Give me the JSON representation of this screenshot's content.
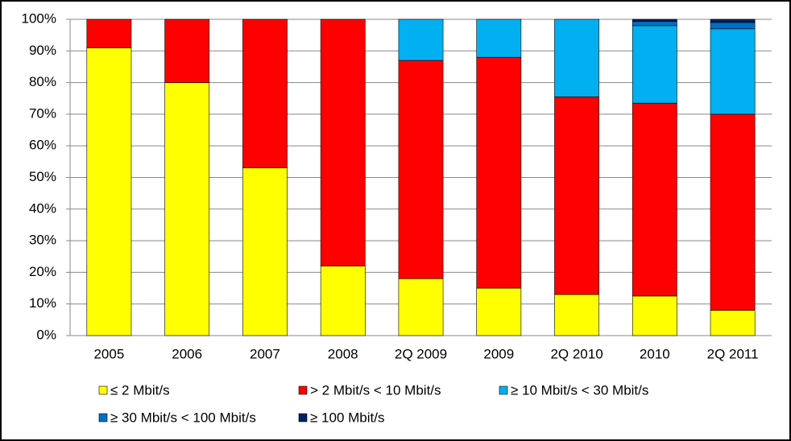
{
  "chart_data": {
    "type": "stacked_bar",
    "categories": [
      "2005",
      "2006",
      "2007",
      "2008",
      "2Q 2009",
      "2009",
      "2Q 2010",
      "2010",
      "2Q 2011"
    ],
    "series": [
      {
        "name": "≤  2 Mbit/s",
        "color": "#ffff00",
        "values": [
          91,
          80,
          53,
          22,
          18,
          15,
          13,
          12.5,
          8
        ]
      },
      {
        "name": "> 2 Mbit/s < 10 Mbit/s",
        "color": "#ff0000",
        "values": [
          9,
          20,
          47,
          78,
          69,
          73,
          62.5,
          61,
          62
        ]
      },
      {
        "name": "≥ 10 Mbit/s < 30 Mbit/s",
        "color": "#00b0f0",
        "values": [
          0,
          0,
          0,
          0,
          13,
          12,
          24.5,
          24.5,
          27
        ]
      },
      {
        "name": "≥ 30 Mbit/s < 100 Mbit/s",
        "color": "#0070c0",
        "values": [
          0,
          0,
          0,
          0,
          0,
          0,
          0,
          1.3,
          2
        ]
      },
      {
        "name": "≥ 100 Mbit/s",
        "color": "#002060",
        "values": [
          0,
          0,
          0,
          0,
          0,
          0,
          0,
          0.7,
          1
        ]
      }
    ],
    "ylim": [
      0,
      100
    ],
    "yticks": [
      {
        "value": 0,
        "label": "0%"
      },
      {
        "value": 10,
        "label": "10%"
      },
      {
        "value": 20,
        "label": "20%"
      },
      {
        "value": 30,
        "label": "30%"
      },
      {
        "value": 40,
        "label": "40%"
      },
      {
        "value": 50,
        "label": "50%"
      },
      {
        "value": 60,
        "label": "60%"
      },
      {
        "value": 70,
        "label": "70%"
      },
      {
        "value": 80,
        "label": "80%"
      },
      {
        "value": 90,
        "label": "90%"
      },
      {
        "value": 100,
        "label": "100%"
      }
    ],
    "grid": true,
    "legend": "bottom"
  }
}
